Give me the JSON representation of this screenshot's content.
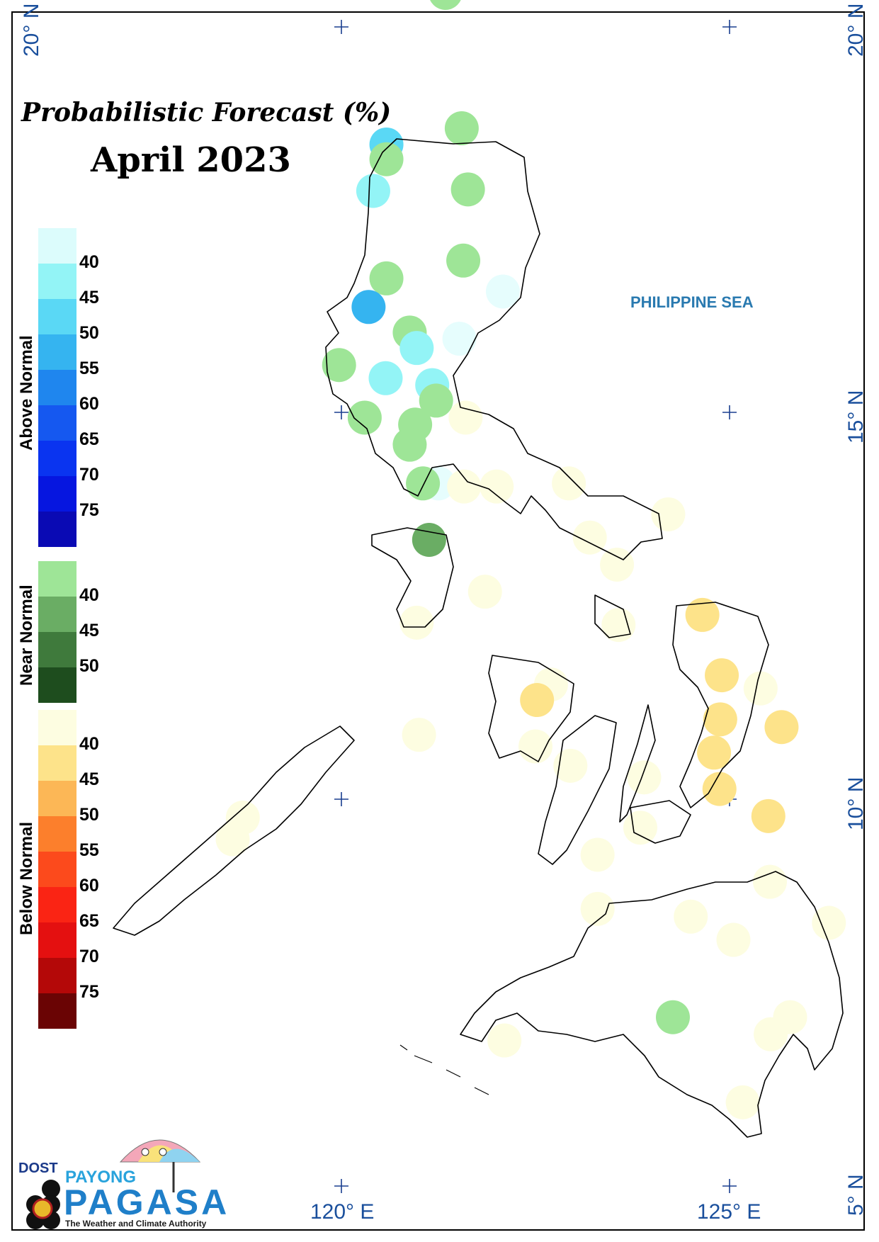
{
  "map": {
    "title": "Probabilistic Forecast (%)",
    "subtitle": "April 2023",
    "sea_label": "PHILIPPINE SEA",
    "axis_labels": {
      "lat_20_left": "20° N",
      "lat_20_right": "20° N",
      "lat_15_right": "15° N",
      "lat_10_right": "10° N",
      "lat_5_right": "5° N",
      "lon_120": "120° E",
      "lon_125": "125° E"
    }
  },
  "legend": {
    "above_normal": {
      "label": "Above Normal",
      "colors": [
        "#dcfcfc",
        "#93f4f6",
        "#5ad8f5",
        "#35b4f0",
        "#1f86ee",
        "#1558f0",
        "#0a34f0",
        "#0616e0",
        "#0a0ab4"
      ],
      "ticks": [
        "40",
        "45",
        "50",
        "55",
        "60",
        "65",
        "70",
        "75"
      ]
    },
    "near_normal": {
      "label": "Near Normal",
      "colors": [
        "#9ee597",
        "#6aad64",
        "#3f7a3c",
        "#1e4d1e"
      ],
      "ticks": [
        "40",
        "45",
        "50"
      ]
    },
    "below_normal": {
      "label": "Below Normal",
      "colors": [
        "#fdfde1",
        "#fde38a",
        "#fcb756",
        "#fc7f2c",
        "#fc4a1c",
        "#fa2414",
        "#e41010",
        "#b40808",
        "#6a0404"
      ],
      "ticks": [
        "40",
        "45",
        "50",
        "55",
        "60",
        "65",
        "70",
        "75"
      ]
    }
  },
  "logo": {
    "dost": "DOST",
    "payong": "PAYONG",
    "pagasa": "PAGASA",
    "tagline": "The Weather and Climate Authority"
  },
  "stations": [
    {
      "lon": 121.34,
      "lat": 20.44,
      "category": "near",
      "level": 40
    },
    {
      "lon": 121.55,
      "lat": 18.69,
      "category": "near",
      "level": 40
    },
    {
      "lon": 120.58,
      "lat": 18.48,
      "category": "above",
      "level": 45
    },
    {
      "lon": 120.58,
      "lat": 18.29,
      "category": "near",
      "level": 40
    },
    {
      "lon": 120.41,
      "lat": 17.88,
      "category": "above",
      "level": 40
    },
    {
      "lon": 121.63,
      "lat": 17.9,
      "category": "near",
      "level": 40
    },
    {
      "lon": 121.57,
      "lat": 16.98,
      "category": "near",
      "level": 40
    },
    {
      "lon": 120.58,
      "lat": 16.75,
      "category": "near",
      "level": 40
    },
    {
      "lon": 122.08,
      "lat": 16.58,
      "category": "above",
      "level": 35
    },
    {
      "lon": 120.35,
      "lat": 16.38,
      "category": "above",
      "level": 50
    },
    {
      "lon": 120.88,
      "lat": 16.05,
      "category": "near",
      "level": 40
    },
    {
      "lon": 121.52,
      "lat": 15.97,
      "category": "above",
      "level": 35
    },
    {
      "lon": 120.97,
      "lat": 15.85,
      "category": "above",
      "level": 40
    },
    {
      "lon": 119.97,
      "lat": 15.63,
      "category": "near",
      "level": 40
    },
    {
      "lon": 120.57,
      "lat": 15.46,
      "category": "above",
      "level": 40
    },
    {
      "lon": 121.17,
      "lat": 15.37,
      "category": "above",
      "level": 40
    },
    {
      "lon": 121.22,
      "lat": 15.17,
      "category": "near",
      "level": 40
    },
    {
      "lon": 120.3,
      "lat": 14.95,
      "category": "near",
      "level": 40
    },
    {
      "lon": 121.6,
      "lat": 14.95,
      "category": "below",
      "level": 35
    },
    {
      "lon": 120.95,
      "lat": 14.86,
      "category": "near",
      "level": 40
    },
    {
      "lon": 120.88,
      "lat": 14.6,
      "category": "near",
      "level": 40
    },
    {
      "lon": 121.25,
      "lat": 14.1,
      "category": "above",
      "level": 35
    },
    {
      "lon": 121.05,
      "lat": 14.1,
      "category": "near",
      "level": 40
    },
    {
      "lon": 121.58,
      "lat": 14.06,
      "category": "below",
      "level": 35
    },
    {
      "lon": 122.0,
      "lat": 14.06,
      "category": "below",
      "level": 35
    },
    {
      "lon": 122.93,
      "lat": 14.1,
      "category": "below",
      "level": 35
    },
    {
      "lon": 124.21,
      "lat": 13.7,
      "category": "below",
      "level": 35
    },
    {
      "lon": 123.2,
      "lat": 13.4,
      "category": "below",
      "level": 35
    },
    {
      "lon": 121.13,
      "lat": 13.37,
      "category": "near",
      "level": 45
    },
    {
      "lon": 123.55,
      "lat": 13.05,
      "category": "below",
      "level": 35
    },
    {
      "lon": 121.85,
      "lat": 12.7,
      "category": "below",
      "level": 35
    },
    {
      "lon": 124.65,
      "lat": 12.4,
      "category": "below",
      "level": 40
    },
    {
      "lon": 123.57,
      "lat": 12.27,
      "category": "below",
      "level": 35
    },
    {
      "lon": 120.97,
      "lat": 12.3,
      "category": "below",
      "level": 35
    },
    {
      "lon": 124.9,
      "lat": 11.62,
      "category": "below",
      "level": 40
    },
    {
      "lon": 125.4,
      "lat": 11.45,
      "category": "below",
      "level": 35
    },
    {
      "lon": 122.7,
      "lat": 11.5,
      "category": "below",
      "level": 35
    },
    {
      "lon": 122.52,
      "lat": 11.3,
      "category": "below",
      "level": 40
    },
    {
      "lon": 124.88,
      "lat": 11.05,
      "category": "below",
      "level": 40
    },
    {
      "lon": 125.67,
      "lat": 10.95,
      "category": "below",
      "level": 40
    },
    {
      "lon": 121.0,
      "lat": 10.85,
      "category": "below",
      "level": 35
    },
    {
      "lon": 122.5,
      "lat": 10.7,
      "category": "below",
      "level": 35
    },
    {
      "lon": 124.8,
      "lat": 10.62,
      "category": "below",
      "level": 40
    },
    {
      "lon": 122.95,
      "lat": 10.45,
      "category": "below",
      "level": 35
    },
    {
      "lon": 123.9,
      "lat": 10.3,
      "category": "below",
      "level": 35
    },
    {
      "lon": 124.87,
      "lat": 10.15,
      "category": "below",
      "level": 40
    },
    {
      "lon": 125.5,
      "lat": 9.8,
      "category": "below",
      "level": 40
    },
    {
      "lon": 118.73,
      "lat": 9.78,
      "category": "below",
      "level": 35
    },
    {
      "lon": 118.6,
      "lat": 9.5,
      "category": "below",
      "level": 35
    },
    {
      "lon": 123.85,
      "lat": 9.65,
      "category": "below",
      "level": 35
    },
    {
      "lon": 123.3,
      "lat": 9.3,
      "category": "below",
      "level": 35
    },
    {
      "lon": 125.52,
      "lat": 8.95,
      "category": "below",
      "level": 35
    },
    {
      "lon": 123.3,
      "lat": 8.6,
      "category": "below",
      "level": 35
    },
    {
      "lon": 124.5,
      "lat": 8.5,
      "category": "below",
      "level": 35
    },
    {
      "lon": 126.28,
      "lat": 8.42,
      "category": "below",
      "level": 35
    },
    {
      "lon": 125.05,
      "lat": 8.2,
      "category": "below",
      "level": 35
    },
    {
      "lon": 124.27,
      "lat": 7.2,
      "category": "near",
      "level": 40
    },
    {
      "lon": 125.78,
      "lat": 7.2,
      "category": "below",
      "level": 35
    },
    {
      "lon": 125.53,
      "lat": 6.98,
      "category": "below",
      "level": 35
    },
    {
      "lon": 122.1,
      "lat": 6.9,
      "category": "below",
      "level": 35
    },
    {
      "lon": 125.17,
      "lat": 6.1,
      "category": "below",
      "level": 35
    }
  ]
}
